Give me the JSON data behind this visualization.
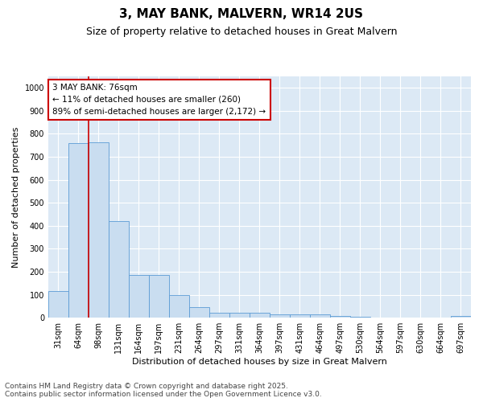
{
  "title": "3, MAY BANK, MALVERN, WR14 2US",
  "subtitle": "Size of property relative to detached houses in Great Malvern",
  "xlabel": "Distribution of detached houses by size in Great Malvern",
  "ylabel": "Number of detached properties",
  "categories": [
    "31sqm",
    "64sqm",
    "98sqm",
    "131sqm",
    "164sqm",
    "197sqm",
    "231sqm",
    "264sqm",
    "297sqm",
    "331sqm",
    "364sqm",
    "397sqm",
    "431sqm",
    "464sqm",
    "497sqm",
    "530sqm",
    "564sqm",
    "597sqm",
    "630sqm",
    "664sqm",
    "697sqm"
  ],
  "values": [
    115,
    760,
    762,
    420,
    185,
    185,
    97,
    45,
    20,
    20,
    20,
    15,
    15,
    15,
    8,
    3,
    2,
    1,
    1,
    1,
    7
  ],
  "bar_color": "#c9ddf0",
  "bar_edge_color": "#5b9bd5",
  "annotation_line_color": "#cc0000",
  "annotation_box_text": "3 MAY BANK: 76sqm\n← 11% of detached houses are smaller (260)\n89% of semi-detached houses are larger (2,172) →",
  "annotation_box_color": "#ffffff",
  "annotation_box_edge_color": "#cc0000",
  "ylim": [
    0,
    1050
  ],
  "yticks": [
    0,
    100,
    200,
    300,
    400,
    500,
    600,
    700,
    800,
    900,
    1000
  ],
  "footer_line1": "Contains HM Land Registry data © Crown copyright and database right 2025.",
  "footer_line2": "Contains public sector information licensed under the Open Government Licence v3.0.",
  "fig_bg_color": "#ffffff",
  "plot_bg_color": "#dce9f5",
  "grid_color": "#ffffff",
  "title_fontsize": 11,
  "subtitle_fontsize": 9,
  "axis_label_fontsize": 8,
  "tick_fontsize": 7,
  "annotation_fontsize": 7.5,
  "footer_fontsize": 6.5
}
